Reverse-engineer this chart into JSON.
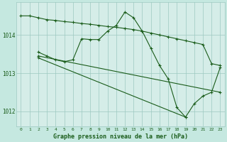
{
  "background_color": "#c5e8e0",
  "plot_bg_color": "#d5ede8",
  "line_color": "#1a5c1a",
  "grid_color": "#9cc8c0",
  "title": "Graphe pression niveau de la mer (hPa)",
  "tick_color": "#1a5c1a",
  "ylim": [
    1011.6,
    1014.85
  ],
  "yticks": [
    1012,
    1013,
    1014
  ],
  "xticks": [
    0,
    1,
    2,
    3,
    4,
    5,
    6,
    7,
    8,
    9,
    10,
    11,
    12,
    13,
    14,
    15,
    16,
    17,
    18,
    19,
    20,
    21,
    22,
    23
  ],
  "series": [
    {
      "x": [
        0,
        1,
        2,
        3,
        4,
        5,
        6,
        7,
        8,
        9,
        10,
        11,
        12,
        13,
        14,
        15,
        16,
        17,
        18,
        19,
        20,
        21,
        22,
        23
      ],
      "y": [
        1014.5,
        1014.5,
        1014.45,
        1014.4,
        1014.38,
        1014.35,
        1014.33,
        1014.3,
        1014.28,
        1014.25,
        1014.22,
        1014.2,
        1014.17,
        1014.14,
        1014.1,
        1014.05,
        1014.0,
        1013.95,
        1013.9,
        1013.85,
        1013.8,
        1013.75,
        1013.25,
        1013.2
      ]
    },
    {
      "x": [
        2,
        3,
        4,
        5,
        6,
        7,
        8,
        9,
        10,
        11,
        12,
        13,
        14,
        15,
        16,
        17,
        18,
        19,
        20,
        21,
        22,
        23
      ],
      "y": [
        1013.55,
        1013.45,
        1013.35,
        1013.3,
        1013.35,
        1013.9,
        1013.88,
        1013.88,
        1014.1,
        1014.25,
        1014.6,
        1014.45,
        1014.1,
        1013.65,
        1013.2,
        1012.85,
        1012.1,
        1011.85,
        1012.2,
        1012.4,
        1012.5,
        1013.15
      ]
    },
    {
      "x": [
        2,
        23
      ],
      "y": [
        1013.45,
        1012.5
      ]
    },
    {
      "x": [
        2,
        19
      ],
      "y": [
        1013.4,
        1011.85
      ]
    }
  ]
}
